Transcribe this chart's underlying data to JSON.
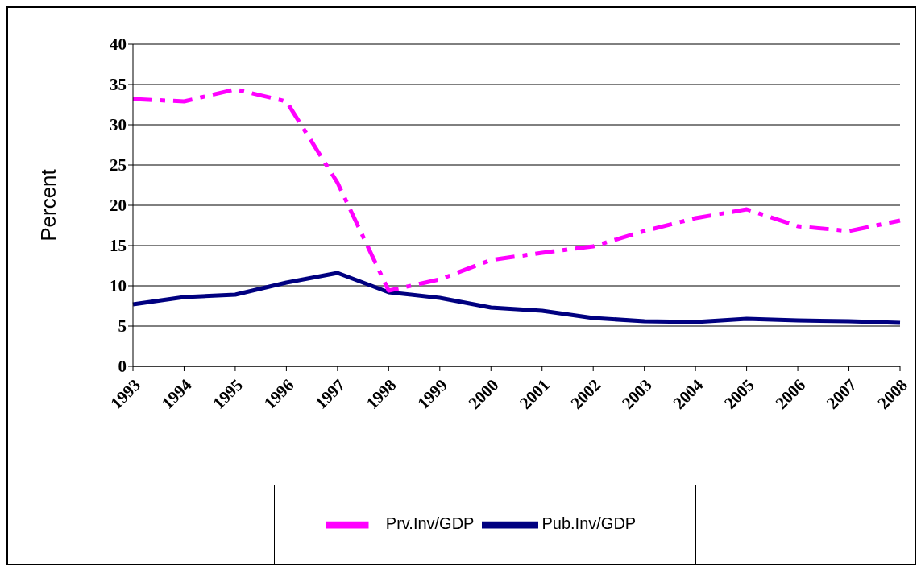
{
  "chart_data": {
    "type": "line",
    "ylabel": "Percent",
    "categories": [
      "1993",
      "1994",
      "1995",
      "1996",
      "1997",
      "1998",
      "1999",
      "2000",
      "2001",
      "2002",
      "2003",
      "2004",
      "2005",
      "2006",
      "2007",
      "2008"
    ],
    "series": [
      {
        "name": "Pub.Inv/GDP",
        "color": "#000080",
        "line_style": "solid",
        "values": [
          7.7,
          8.6,
          8.9,
          10.4,
          11.6,
          9.2,
          8.5,
          7.3,
          6.9,
          6.0,
          5.6,
          5.5,
          5.9,
          5.7,
          5.6,
          5.4
        ]
      },
      {
        "name": "Prv.Inv/GDP",
        "color": "#ff00ff",
        "line_style": "dashed",
        "values": [
          33.2,
          32.9,
          34.4,
          32.9,
          22.8,
          9.4,
          10.8,
          13.2,
          14.1,
          14.9,
          16.8,
          18.4,
          19.5,
          17.4,
          16.8,
          18.1
        ]
      }
    ],
    "ylim": [
      0,
      40
    ],
    "yticks": [
      0,
      5,
      10,
      15,
      20,
      25,
      30,
      35,
      40
    ],
    "grid": "y",
    "legend": "bottom",
    "marker": "none"
  }
}
